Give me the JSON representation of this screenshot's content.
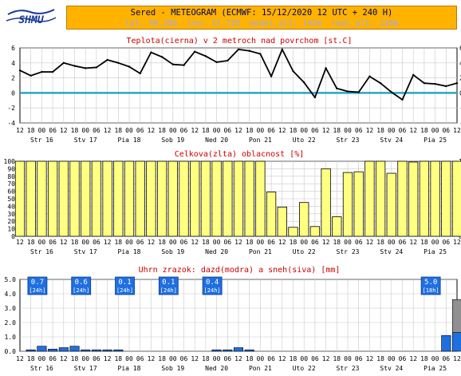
{
  "header": {
    "title": "Sered - METEOGRAM (ECMWF: 15/12/2020 12 UTC + 240 H)",
    "subtitle": "lat: 48.286  lon: 17.735  model_alt: 142m  real_alt: 128m"
  },
  "logo": {
    "text": "SHMU"
  },
  "x_axis": {
    "hour_labels": [
      "12",
      "18",
      "00",
      "06",
      "12",
      "18",
      "00",
      "06",
      "12",
      "18",
      "00",
      "06",
      "12",
      "18",
      "00",
      "06",
      "12",
      "18",
      "00",
      "06",
      "12",
      "18",
      "00",
      "06",
      "12",
      "18",
      "00",
      "06",
      "12",
      "18",
      "00",
      "06",
      "12",
      "18",
      "00",
      "06",
      "12",
      "18",
      "00",
      "06",
      "12"
    ],
    "day_labels": [
      "Str 16",
      "Stv 17",
      "Pia 18",
      "Sob 19",
      "Ned 20",
      "Pon 21",
      "Uto 22",
      "Str 23",
      "Stv 24",
      "Pia 25"
    ]
  },
  "chart_data": [
    {
      "type": "line",
      "title": "Teplota(cierna) v 2 metroch nad povrchom [st.C]",
      "ylim": [
        -4,
        6
      ],
      "yticks": [
        "-4",
        "-2",
        "0",
        "2",
        "4",
        "6"
      ],
      "x_step_hours": 6,
      "series": [
        {
          "color": "#000000",
          "values": [
            3.0,
            2.3,
            2.8,
            2.8,
            4.0,
            3.6,
            3.3,
            3.4,
            4.4,
            4.0,
            3.5,
            2.6,
            5.4,
            4.8,
            3.8,
            3.7,
            5.5,
            4.9,
            4.1,
            4.3,
            5.8,
            5.6,
            5.2,
            2.2,
            5.8,
            2.9,
            1.4,
            -0.6,
            3.3,
            0.6,
            0.2,
            0.1,
            2.2,
            1.3,
            0.1,
            -0.9,
            2.4,
            1.3,
            1.2,
            0.9,
            1.3
          ]
        }
      ],
      "zero_line_color": "#2aa6bf"
    },
    {
      "type": "bar",
      "title": "Celkova(zlta) oblacnost [%]",
      "ylim": [
        0,
        100
      ],
      "yticks": [
        "0",
        "10",
        "20",
        "30",
        "40",
        "50",
        "60",
        "70",
        "80",
        "90",
        "100"
      ],
      "x_step_hours": 6,
      "bar_color": "#ffff80",
      "values": [
        100,
        100,
        100,
        100,
        100,
        100,
        100,
        100,
        100,
        100,
        100,
        100,
        100,
        100,
        100,
        100,
        100,
        100,
        100,
        100,
        100,
        100,
        100,
        59,
        39,
        12,
        45,
        13,
        90,
        26,
        85,
        86,
        100,
        100,
        84,
        100,
        99,
        100,
        100,
        100,
        100
      ]
    },
    {
      "type": "bar",
      "title": "Uhrn zrazok: dazd(modra) a sneh(siva) [mm]",
      "ylim": [
        0,
        5
      ],
      "yticks": [
        "0.0",
        "1.0",
        "2.0",
        "3.0",
        "4.0",
        "5.0"
      ],
      "x_step_hours": 6,
      "series": [
        {
          "name": "dazd",
          "color": "#1f6fe0",
          "values": [
            0,
            0.1,
            0.35,
            0.15,
            0.25,
            0.35,
            0.1,
            0.1,
            0.1,
            0.1,
            0,
            0,
            0,
            0,
            0,
            0,
            0,
            0,
            0.1,
            0.1,
            0.25,
            0.1,
            0,
            0,
            0,
            0,
            0,
            0,
            0,
            0,
            0,
            0,
            0,
            0,
            0,
            0,
            0,
            0,
            0,
            1.1,
            1.3
          ]
        },
        {
          "name": "sneh",
          "color": "#909090",
          "values": [
            0,
            0,
            0,
            0,
            0,
            0,
            0,
            0,
            0,
            0,
            0,
            0,
            0,
            0,
            0,
            0,
            0,
            0,
            0,
            0,
            0,
            0,
            0,
            0,
            0,
            0,
            0,
            0,
            0,
            0,
            0,
            0,
            0,
            0,
            0,
            0,
            0,
            0,
            0,
            0,
            2.3
          ]
        }
      ],
      "daily_totals": [
        {
          "value": "0.7",
          "period": "[24h]",
          "day_index": 0
        },
        {
          "value": "0.6",
          "period": "[24h]",
          "day_index": 1
        },
        {
          "value": "0.1",
          "period": "[24h]",
          "day_index": 2
        },
        {
          "value": "0.1",
          "period": "[24h]",
          "day_index": 3
        },
        {
          "value": "0.4",
          "period": "[24h]",
          "day_index": 4
        },
        {
          "value": "5.0",
          "period": "[18h]",
          "day_index": 9
        }
      ]
    }
  ]
}
